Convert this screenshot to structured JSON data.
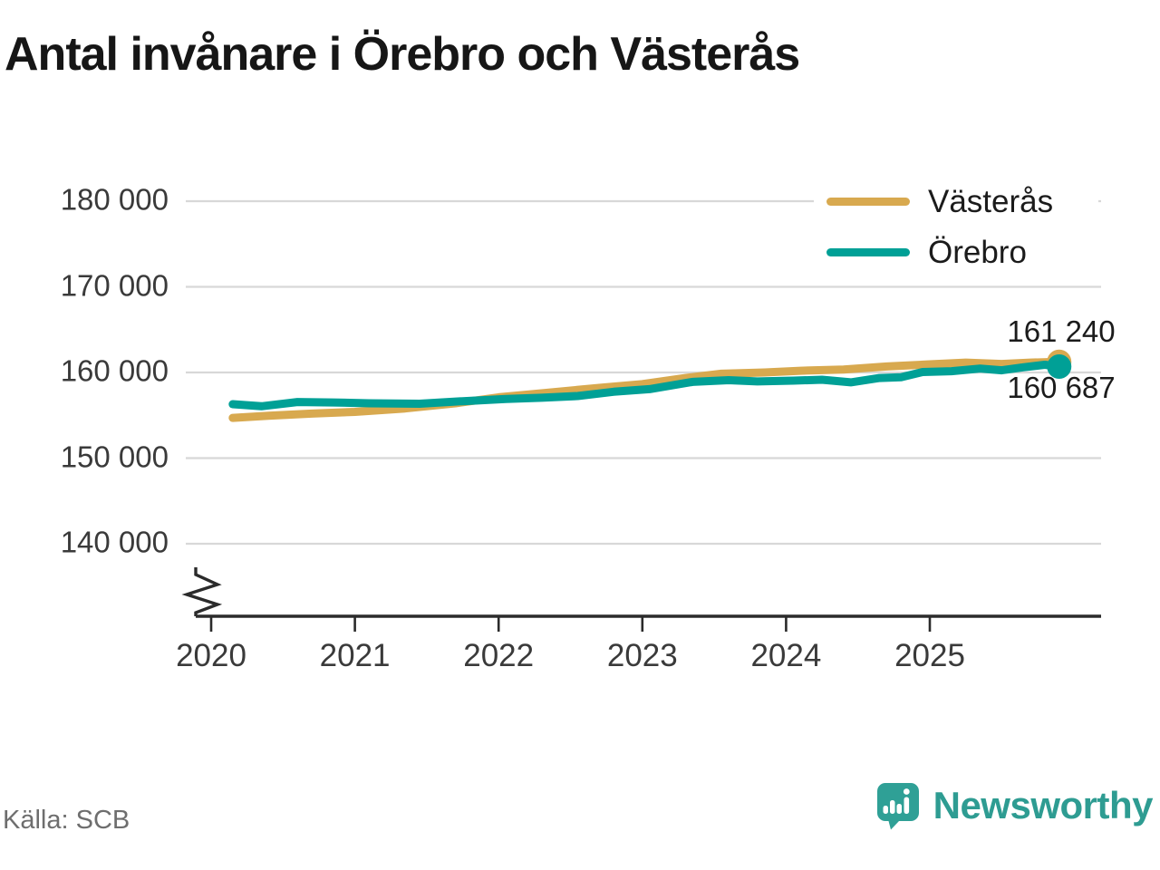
{
  "header": {
    "title": "Antal invånare i Örebro och Västerås"
  },
  "chart_data": {
    "type": "line",
    "title": "Antal invånare i Örebro och Västerås",
    "x_ticks": [
      "2020",
      "2021",
      "2022",
      "2023",
      "2024",
      "2025"
    ],
    "y_ticks": [
      {
        "value": 180000,
        "label": "180 000"
      },
      {
        "value": 170000,
        "label": "170 000"
      },
      {
        "value": 160000,
        "label": "160 000"
      },
      {
        "value": 150000,
        "label": "150 000"
      },
      {
        "value": 140000,
        "label": "140 000"
      }
    ],
    "y_axis_break": true,
    "grid": true,
    "legend_position": "top-right",
    "series": [
      {
        "name": "Västerås",
        "color": "#D8A94F",
        "end_value": 161240,
        "end_label": "161 240",
        "points": [
          [
            2020.15,
            154700
          ],
          [
            2020.4,
            154950
          ],
          [
            2020.7,
            155200
          ],
          [
            2021.0,
            155400
          ],
          [
            2021.35,
            155800
          ],
          [
            2021.7,
            156400
          ],
          [
            2022.0,
            157100
          ],
          [
            2022.35,
            157650
          ],
          [
            2022.7,
            158200
          ],
          [
            2023.0,
            158650
          ],
          [
            2023.3,
            159350
          ],
          [
            2023.55,
            159850
          ],
          [
            2023.85,
            160000
          ],
          [
            2024.1,
            160200
          ],
          [
            2024.4,
            160350
          ],
          [
            2024.7,
            160700
          ],
          [
            2025.0,
            160950
          ],
          [
            2025.25,
            161150
          ],
          [
            2025.5,
            161000
          ],
          [
            2025.7,
            161150
          ],
          [
            2025.9,
            161240
          ]
        ]
      },
      {
        "name": "Örebro",
        "color": "#00A096",
        "end_value": 160687,
        "end_label": "160 687",
        "points": [
          [
            2020.15,
            156300
          ],
          [
            2020.35,
            156050
          ],
          [
            2020.6,
            156550
          ],
          [
            2020.85,
            156500
          ],
          [
            2021.1,
            156400
          ],
          [
            2021.45,
            156350
          ],
          [
            2021.75,
            156650
          ],
          [
            2022.05,
            156900
          ],
          [
            2022.3,
            157050
          ],
          [
            2022.55,
            157250
          ],
          [
            2022.8,
            157750
          ],
          [
            2023.05,
            158050
          ],
          [
            2023.35,
            158900
          ],
          [
            2023.6,
            159100
          ],
          [
            2023.8,
            158950
          ],
          [
            2024.05,
            159050
          ],
          [
            2024.25,
            159150
          ],
          [
            2024.45,
            158850
          ],
          [
            2024.65,
            159350
          ],
          [
            2024.8,
            159450
          ],
          [
            2024.95,
            160050
          ],
          [
            2025.15,
            160150
          ],
          [
            2025.35,
            160450
          ],
          [
            2025.5,
            160250
          ],
          [
            2025.65,
            160600
          ],
          [
            2025.8,
            160900
          ],
          [
            2025.9,
            160687
          ]
        ]
      }
    ]
  },
  "footer": {
    "source": "Källa: SCB",
    "brand": "Newsworthy"
  },
  "colors": {
    "vasteras": "#D8A94F",
    "orebro": "#00A096",
    "brand_teal": "#2E9C92",
    "grid": "#D8D8D8",
    "axis": "#2B2B2B",
    "text": "#1B1B1B",
    "muted": "#6E6E6E"
  }
}
